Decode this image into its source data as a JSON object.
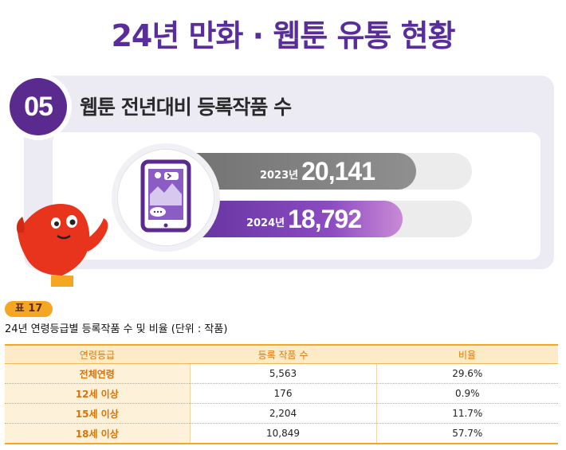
{
  "header": {
    "title": "24년 만화 · 웹툰 유통 현황"
  },
  "section": {
    "number": "05",
    "title": "웹툰 전년대비 등록작품 수",
    "bars": [
      {
        "year_label": "2023년",
        "value_label": "20,141",
        "value": 20141
      },
      {
        "year_label": "2024년",
        "value_label": "18,792",
        "value": 18792
      }
    ],
    "icon": "smartphone-webtoon-icon",
    "colors": {
      "accent": "#5b2a8e",
      "bar_2023": "#7a7a7a",
      "bar_2024": "#7b3fb8",
      "panel": "#eceaf3"
    }
  },
  "table": {
    "tag": "표 17",
    "caption": "24년 연령등급별 등록작품 수 및 비율 (단위 : 작품)",
    "headers": [
      "연령등급",
      "등록 작품 수",
      "비율"
    ],
    "rows": [
      {
        "grade": "전체연령",
        "count": "5,563",
        "ratio": "29.6%"
      },
      {
        "grade": "12세 이상",
        "count": "176",
        "ratio": "0.9%"
      },
      {
        "grade": "15세 이상",
        "count": "2,204",
        "ratio": "11.7%"
      },
      {
        "grade": "18세 이상",
        "count": "10,849",
        "ratio": "57.7%"
      }
    ],
    "colors": {
      "accent": "#f5a623",
      "header_bg": "#fdebc8"
    }
  }
}
